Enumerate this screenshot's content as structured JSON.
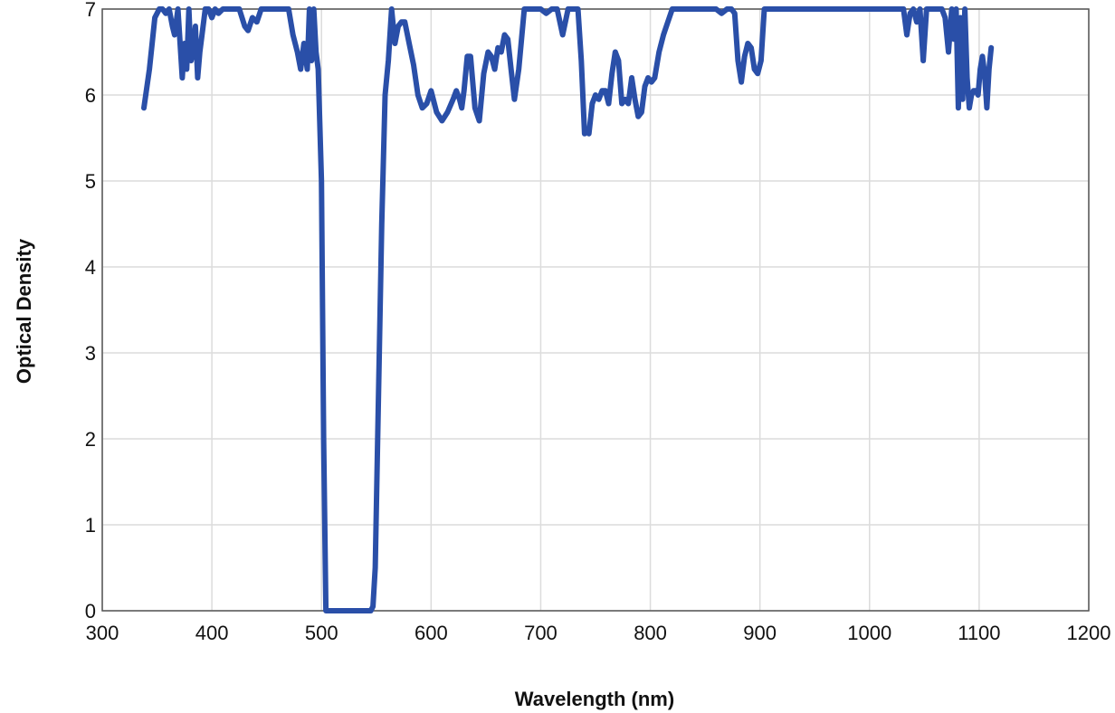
{
  "chart_data": {
    "type": "line",
    "title": "",
    "xlabel": "Wavelength (nm)",
    "ylabel": "Optical Density",
    "xlim": [
      300,
      1200
    ],
    "ylim": [
      0,
      7
    ],
    "xticks": [
      300,
      400,
      500,
      600,
      700,
      800,
      900,
      1000,
      1100,
      1200
    ],
    "yticks": [
      0,
      1,
      2,
      3,
      4,
      5,
      6,
      7
    ],
    "grid": true,
    "line_color": "#2a4fa8",
    "series": [
      {
        "x": [
          338,
          343,
          348,
          352,
          355,
          358,
          361,
          364,
          366,
          369,
          371,
          373,
          375,
          377,
          379,
          381,
          383,
          385,
          387,
          389,
          391,
          394,
          397,
          400,
          403,
          406,
          410,
          415,
          420,
          425,
          430,
          433,
          437,
          441,
          445,
          450,
          458,
          466,
          470,
          474,
          478,
          481,
          484,
          487,
          489,
          491,
          493,
          495,
          497,
          500,
          502,
          504,
          508,
          515,
          520,
          525,
          530,
          535,
          540,
          545,
          547,
          549,
          552,
          555,
          558,
          561,
          564,
          567,
          570,
          573,
          576,
          580,
          584,
          588,
          592,
          596,
          600,
          605,
          610,
          615,
          620,
          623,
          626,
          628,
          630,
          633,
          636,
          640,
          644,
          648,
          652,
          655,
          658,
          661,
          664,
          667,
          670,
          673,
          676,
          680,
          685,
          690,
          695,
          700,
          705,
          710,
          715,
          720,
          725,
          730,
          734,
          737,
          740,
          742,
          744,
          747,
          750,
          753,
          756,
          759,
          762,
          765,
          768,
          771,
          774,
          777,
          780,
          783,
          786,
          789,
          792,
          795,
          798,
          801,
          804,
          808,
          812,
          816,
          820,
          830,
          840,
          850,
          855,
          860,
          865,
          870,
          874,
          877,
          880,
          883,
          886,
          889,
          892,
          895,
          898,
          901,
          904,
          910,
          920,
          930,
          940,
          950,
          960,
          970,
          980,
          990,
          1000,
          1010,
          1020,
          1025,
          1028,
          1031,
          1034,
          1037,
          1040,
          1043,
          1046,
          1049,
          1052,
          1055,
          1060,
          1066,
          1069,
          1072,
          1075,
          1077,
          1079,
          1081,
          1083,
          1085,
          1087,
          1089,
          1091,
          1093,
          1095,
          1097,
          1099,
          1101,
          1103,
          1105,
          1107,
          1109,
          1111
        ],
        "y": [
          5.85,
          6.3,
          6.9,
          7.0,
          7.0,
          6.95,
          7.0,
          6.8,
          6.7,
          7.0,
          6.6,
          6.2,
          6.6,
          6.3,
          7.0,
          6.4,
          6.5,
          6.8,
          6.2,
          6.5,
          6.7,
          7.0,
          7.0,
          6.9,
          7.0,
          6.95,
          7.0,
          7.0,
          7.0,
          7.0,
          6.8,
          6.75,
          6.9,
          6.85,
          7.0,
          7.0,
          7.0,
          7.0,
          7.0,
          6.7,
          6.5,
          6.3,
          6.6,
          6.3,
          7.0,
          6.4,
          7.0,
          6.5,
          6.3,
          5.0,
          2.0,
          0.0,
          0.0,
          0.0,
          0.0,
          0.0,
          0.0,
          0.0,
          0.0,
          0.0,
          0.05,
          0.5,
          2.5,
          4.5,
          6.0,
          6.4,
          7.0,
          6.6,
          6.8,
          6.85,
          6.85,
          6.6,
          6.35,
          6.0,
          5.85,
          5.9,
          6.05,
          5.8,
          5.7,
          5.8,
          5.95,
          6.05,
          5.95,
          5.85,
          6.05,
          6.45,
          6.45,
          5.85,
          5.7,
          6.25,
          6.5,
          6.45,
          6.3,
          6.55,
          6.5,
          6.7,
          6.65,
          6.3,
          5.95,
          6.3,
          7.0,
          7.0,
          7.0,
          7.0,
          6.95,
          7.0,
          7.0,
          6.7,
          7.0,
          7.0,
          7.0,
          6.4,
          5.55,
          5.6,
          5.55,
          5.9,
          6.0,
          5.95,
          6.05,
          6.05,
          5.9,
          6.25,
          6.5,
          6.4,
          5.9,
          5.95,
          5.9,
          6.2,
          5.95,
          5.75,
          5.8,
          6.1,
          6.2,
          6.15,
          6.2,
          6.5,
          6.7,
          6.85,
          7.0,
          7.0,
          7.0,
          7.0,
          7.0,
          7.0,
          6.95,
          7.0,
          7.0,
          6.95,
          6.4,
          6.15,
          6.45,
          6.6,
          6.55,
          6.3,
          6.25,
          6.4,
          7.0,
          7.0,
          7.0,
          7.0,
          7.0,
          7.0,
          7.0,
          7.0,
          7.0,
          7.0,
          7.0,
          7.0,
          7.0,
          7.0,
          7.0,
          7.0,
          6.7,
          6.95,
          7.0,
          6.85,
          7.0,
          6.4,
          7.0,
          7.0,
          7.0,
          7.0,
          6.9,
          6.5,
          7.0,
          6.65,
          7.0,
          5.85,
          6.9,
          5.95,
          7.0,
          6.2,
          5.85,
          6.0,
          6.05,
          6.05,
          6.0,
          6.3,
          6.45,
          6.25,
          5.85,
          6.3,
          6.55
        ]
      }
    ]
  }
}
